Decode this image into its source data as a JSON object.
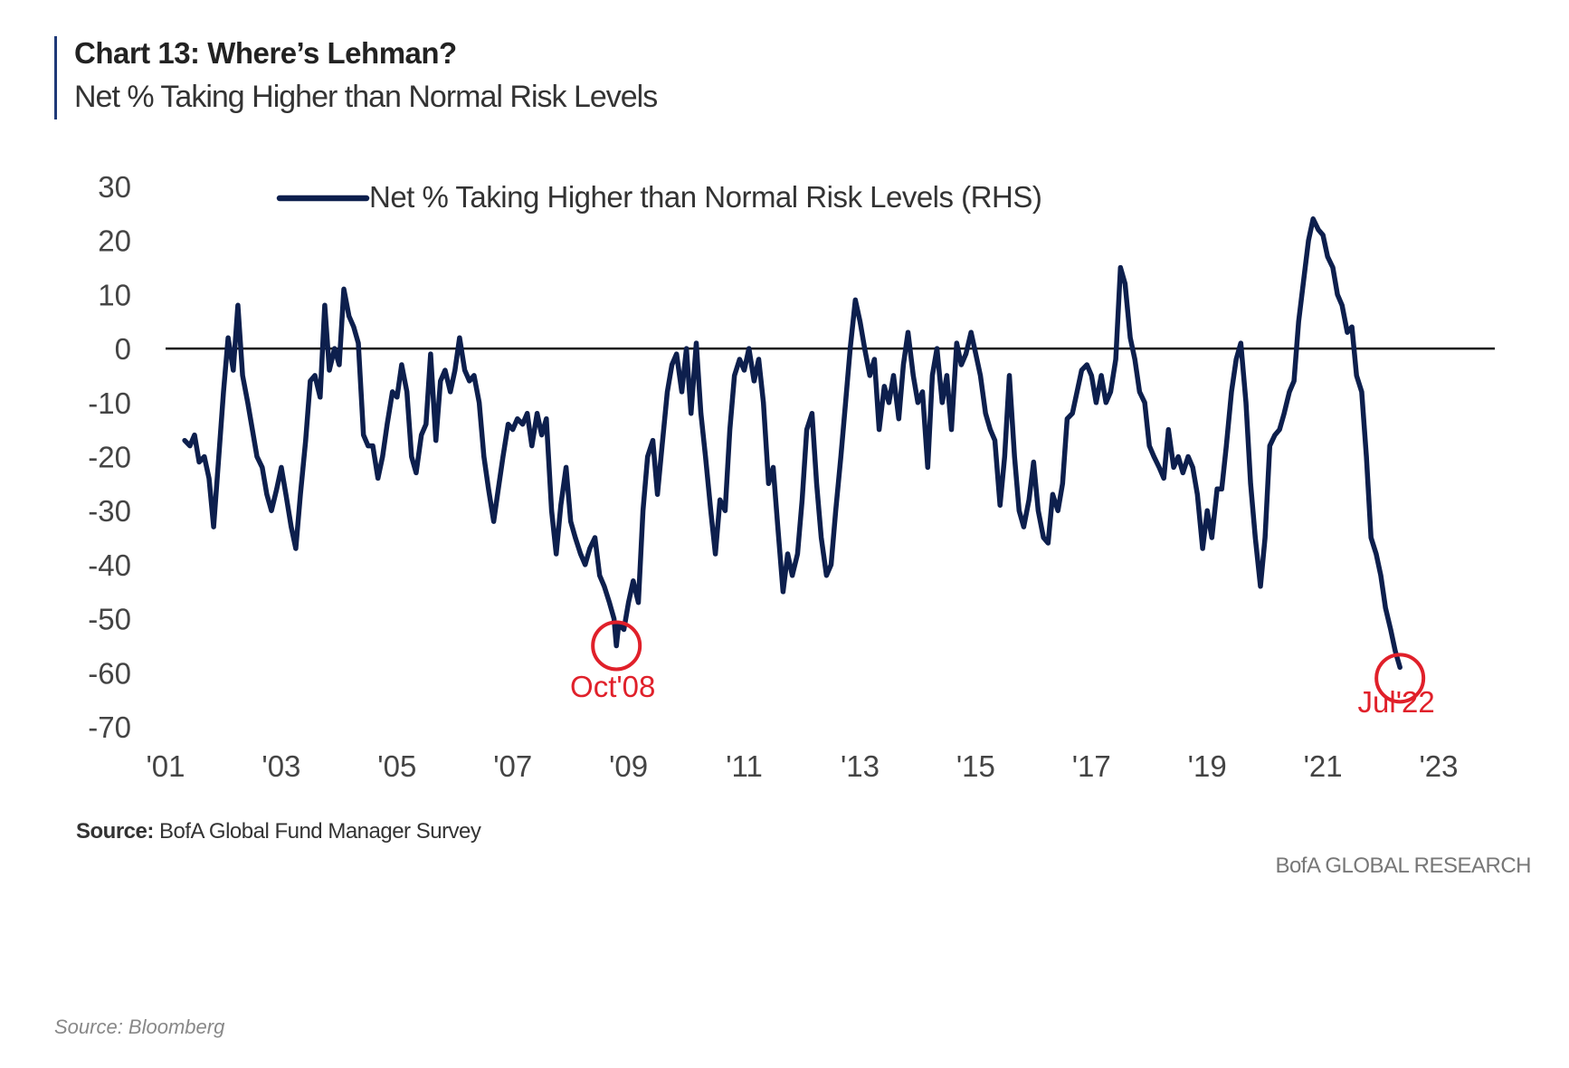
{
  "header": {
    "title": "Chart 13: Where’s Lehman?",
    "subtitle": "Net % Taking Higher than Normal Risk Levels"
  },
  "source": {
    "label": "Source:",
    "text": "BofA Global Fund Manager Survey"
  },
  "brand": "BofA GLOBAL RESEARCH",
  "footer_source": "Source: Bloomberg",
  "chart_data": {
    "type": "line",
    "title": "Chart 13: Where’s Lehman?",
    "subtitle": "Net % Taking Higher than Normal Risk Levels",
    "xlabel": "",
    "ylabel": "",
    "ylim": [
      -70,
      30
    ],
    "xlim": [
      2001.0,
      2023.0
    ],
    "y_ticks": [
      30,
      20,
      10,
      0,
      -10,
      -20,
      -30,
      -40,
      -50,
      -60,
      -70
    ],
    "x_ticks": [
      {
        "value": 2001,
        "label": "'01"
      },
      {
        "value": 2003,
        "label": "'03"
      },
      {
        "value": 2005,
        "label": "'05"
      },
      {
        "value": 2007,
        "label": "'07"
      },
      {
        "value": 2009,
        "label": "'09"
      },
      {
        "value": 2011,
        "label": "'11"
      },
      {
        "value": 2013,
        "label": "'13"
      },
      {
        "value": 2015,
        "label": "'15"
      },
      {
        "value": 2017,
        "label": "'17"
      },
      {
        "value": 2019,
        "label": "'19"
      },
      {
        "value": 2021,
        "label": "'21"
      },
      {
        "value": 2023,
        "label": "'23"
      }
    ],
    "grid": false,
    "zero_line": true,
    "legend": {
      "position": "top-left"
    },
    "series_color": "#0d1f4d",
    "annotation_color": "#e0202a",
    "series": [
      {
        "name": "Net % Taking Higher than Normal Risk Levels (RHS)",
        "points": [
          [
            2001.33,
            -17
          ],
          [
            2001.42,
            -18
          ],
          [
            2001.5,
            -16
          ],
          [
            2001.58,
            -21
          ],
          [
            2001.67,
            -20
          ],
          [
            2001.75,
            -24
          ],
          [
            2001.83,
            -33
          ],
          [
            2001.92,
            -20
          ],
          [
            2002.0,
            -8
          ],
          [
            2002.08,
            2
          ],
          [
            2002.17,
            -4
          ],
          [
            2002.25,
            8
          ],
          [
            2002.33,
            -5
          ],
          [
            2002.42,
            -10
          ],
          [
            2002.5,
            -15
          ],
          [
            2002.58,
            -20
          ],
          [
            2002.67,
            -22
          ],
          [
            2002.75,
            -27
          ],
          [
            2002.83,
            -30
          ],
          [
            2002.92,
            -26
          ],
          [
            2003.0,
            -22
          ],
          [
            2003.08,
            -27
          ],
          [
            2003.17,
            -33
          ],
          [
            2003.25,
            -37
          ],
          [
            2003.33,
            -27
          ],
          [
            2003.42,
            -17
          ],
          [
            2003.5,
            -6
          ],
          [
            2003.58,
            -5
          ],
          [
            2003.67,
            -9
          ],
          [
            2003.75,
            8
          ],
          [
            2003.83,
            -4
          ],
          [
            2003.92,
            0
          ],
          [
            2004.0,
            -3
          ],
          [
            2004.08,
            11
          ],
          [
            2004.17,
            6
          ],
          [
            2004.25,
            4
          ],
          [
            2004.33,
            1
          ],
          [
            2004.42,
            -16
          ],
          [
            2004.5,
            -18
          ],
          [
            2004.58,
            -18
          ],
          [
            2004.67,
            -24
          ],
          [
            2004.75,
            -20
          ],
          [
            2004.83,
            -14
          ],
          [
            2004.92,
            -8
          ],
          [
            2005.0,
            -9
          ],
          [
            2005.08,
            -3
          ],
          [
            2005.17,
            -8
          ],
          [
            2005.25,
            -20
          ],
          [
            2005.33,
            -23
          ],
          [
            2005.42,
            -16
          ],
          [
            2005.5,
            -14
          ],
          [
            2005.58,
            -1
          ],
          [
            2005.67,
            -17
          ],
          [
            2005.75,
            -6
          ],
          [
            2005.83,
            -4
          ],
          [
            2005.92,
            -8
          ],
          [
            2006.0,
            -4
          ],
          [
            2006.08,
            2
          ],
          [
            2006.17,
            -4
          ],
          [
            2006.25,
            -6
          ],
          [
            2006.33,
            -5
          ],
          [
            2006.42,
            -10
          ],
          [
            2006.5,
            -20
          ],
          [
            2006.58,
            -26
          ],
          [
            2006.67,
            -32
          ],
          [
            2006.75,
            -26
          ],
          [
            2006.83,
            -20
          ],
          [
            2006.92,
            -14
          ],
          [
            2007.0,
            -15
          ],
          [
            2007.08,
            -13
          ],
          [
            2007.17,
            -14
          ],
          [
            2007.25,
            -12
          ],
          [
            2007.33,
            -18
          ],
          [
            2007.42,
            -12
          ],
          [
            2007.5,
            -16
          ],
          [
            2007.58,
            -13
          ],
          [
            2007.67,
            -30
          ],
          [
            2007.75,
            -38
          ],
          [
            2007.83,
            -29
          ],
          [
            2007.92,
            -22
          ],
          [
            2008.0,
            -32
          ],
          [
            2008.08,
            -35
          ],
          [
            2008.17,
            -38
          ],
          [
            2008.25,
            -40
          ],
          [
            2008.33,
            -37
          ],
          [
            2008.42,
            -35
          ],
          [
            2008.5,
            -42
          ],
          [
            2008.58,
            -44
          ],
          [
            2008.67,
            -47
          ],
          [
            2008.75,
            -50
          ],
          [
            2008.79,
            -55
          ],
          [
            2008.83,
            -51
          ],
          [
            2008.92,
            -52
          ],
          [
            2009.0,
            -47
          ],
          [
            2009.08,
            -43
          ],
          [
            2009.17,
            -47
          ],
          [
            2009.25,
            -30
          ],
          [
            2009.33,
            -20
          ],
          [
            2009.42,
            -17
          ],
          [
            2009.5,
            -27
          ],
          [
            2009.58,
            -18
          ],
          [
            2009.67,
            -8
          ],
          [
            2009.75,
            -3
          ],
          [
            2009.83,
            -1
          ],
          [
            2009.92,
            -8
          ],
          [
            2010.0,
            0
          ],
          [
            2010.08,
            -12
          ],
          [
            2010.17,
            1
          ],
          [
            2010.25,
            -12
          ],
          [
            2010.33,
            -20
          ],
          [
            2010.42,
            -30
          ],
          [
            2010.5,
            -38
          ],
          [
            2010.58,
            -28
          ],
          [
            2010.67,
            -30
          ],
          [
            2010.75,
            -15
          ],
          [
            2010.83,
            -5
          ],
          [
            2010.92,
            -2
          ],
          [
            2011.0,
            -4
          ],
          [
            2011.08,
            0
          ],
          [
            2011.17,
            -6
          ],
          [
            2011.25,
            -2
          ],
          [
            2011.33,
            -10
          ],
          [
            2011.42,
            -25
          ],
          [
            2011.5,
            -22
          ],
          [
            2011.58,
            -33
          ],
          [
            2011.67,
            -45
          ],
          [
            2011.75,
            -38
          ],
          [
            2011.83,
            -42
          ],
          [
            2011.92,
            -38
          ],
          [
            2012.0,
            -28
          ],
          [
            2012.08,
            -15
          ],
          [
            2012.17,
            -12
          ],
          [
            2012.25,
            -25
          ],
          [
            2012.33,
            -35
          ],
          [
            2012.42,
            -42
          ],
          [
            2012.5,
            -40
          ],
          [
            2012.58,
            -30
          ],
          [
            2012.67,
            -20
          ],
          [
            2012.75,
            -10
          ],
          [
            2012.83,
            0
          ],
          [
            2012.92,
            9
          ],
          [
            2013.0,
            5
          ],
          [
            2013.08,
            0
          ],
          [
            2013.17,
            -5
          ],
          [
            2013.25,
            -2
          ],
          [
            2013.33,
            -15
          ],
          [
            2013.42,
            -7
          ],
          [
            2013.5,
            -10
          ],
          [
            2013.58,
            -5
          ],
          [
            2013.67,
            -13
          ],
          [
            2013.75,
            -3
          ],
          [
            2013.83,
            3
          ],
          [
            2013.92,
            -5
          ],
          [
            2014.0,
            -10
          ],
          [
            2014.08,
            -8
          ],
          [
            2014.17,
            -22
          ],
          [
            2014.25,
            -5
          ],
          [
            2014.33,
            0
          ],
          [
            2014.42,
            -10
          ],
          [
            2014.5,
            -5
          ],
          [
            2014.58,
            -15
          ],
          [
            2014.67,
            1
          ],
          [
            2014.75,
            -3
          ],
          [
            2014.83,
            -1
          ],
          [
            2014.92,
            3
          ],
          [
            2015.0,
            -1
          ],
          [
            2015.08,
            -5
          ],
          [
            2015.17,
            -12
          ],
          [
            2015.25,
            -15
          ],
          [
            2015.33,
            -17
          ],
          [
            2015.42,
            -29
          ],
          [
            2015.5,
            -20
          ],
          [
            2015.58,
            -5
          ],
          [
            2015.67,
            -20
          ],
          [
            2015.75,
            -30
          ],
          [
            2015.83,
            -33
          ],
          [
            2015.92,
            -28
          ],
          [
            2016.0,
            -21
          ],
          [
            2016.08,
            -30
          ],
          [
            2016.17,
            -35
          ],
          [
            2016.25,
            -36
          ],
          [
            2016.33,
            -27
          ],
          [
            2016.42,
            -30
          ],
          [
            2016.5,
            -25
          ],
          [
            2016.58,
            -13
          ],
          [
            2016.67,
            -12
          ],
          [
            2016.75,
            -8
          ],
          [
            2016.83,
            -4
          ],
          [
            2016.92,
            -3
          ],
          [
            2017.0,
            -5
          ],
          [
            2017.08,
            -10
          ],
          [
            2017.17,
            -5
          ],
          [
            2017.25,
            -10
          ],
          [
            2017.33,
            -8
          ],
          [
            2017.42,
            -2
          ],
          [
            2017.5,
            15
          ],
          [
            2017.58,
            12
          ],
          [
            2017.67,
            2
          ],
          [
            2017.75,
            -2
          ],
          [
            2017.83,
            -8
          ],
          [
            2017.92,
            -10
          ],
          [
            2018.0,
            -18
          ],
          [
            2018.08,
            -20
          ],
          [
            2018.17,
            -22
          ],
          [
            2018.25,
            -24
          ],
          [
            2018.33,
            -15
          ],
          [
            2018.42,
            -22
          ],
          [
            2018.5,
            -20
          ],
          [
            2018.58,
            -23
          ],
          [
            2018.67,
            -20
          ],
          [
            2018.75,
            -22
          ],
          [
            2018.83,
            -27
          ],
          [
            2018.92,
            -37
          ],
          [
            2019.0,
            -30
          ],
          [
            2019.08,
            -35
          ],
          [
            2019.17,
            -26
          ],
          [
            2019.25,
            -26
          ],
          [
            2019.33,
            -18
          ],
          [
            2019.42,
            -8
          ],
          [
            2019.5,
            -2
          ],
          [
            2019.58,
            1
          ],
          [
            2019.67,
            -10
          ],
          [
            2019.75,
            -25
          ],
          [
            2019.83,
            -35
          ],
          [
            2019.92,
            -44
          ],
          [
            2020.0,
            -35
          ],
          [
            2020.08,
            -18
          ],
          [
            2020.17,
            -16
          ],
          [
            2020.25,
            -15
          ],
          [
            2020.33,
            -12
          ],
          [
            2020.42,
            -8
          ],
          [
            2020.5,
            -6
          ],
          [
            2020.58,
            5
          ],
          [
            2020.67,
            13
          ],
          [
            2020.75,
            20
          ],
          [
            2020.83,
            24
          ],
          [
            2020.92,
            22
          ],
          [
            2021.0,
            21
          ],
          [
            2021.08,
            17
          ],
          [
            2021.17,
            15
          ],
          [
            2021.25,
            10
          ],
          [
            2021.33,
            8
          ],
          [
            2021.42,
            3
          ],
          [
            2021.5,
            4
          ],
          [
            2021.58,
            -5
          ],
          [
            2021.67,
            -8
          ],
          [
            2021.75,
            -20
          ],
          [
            2021.83,
            -35
          ],
          [
            2021.92,
            -38
          ],
          [
            2022.0,
            -42
          ],
          [
            2022.08,
            -48
          ],
          [
            2022.17,
            -52
          ],
          [
            2022.25,
            -56
          ],
          [
            2022.33,
            -59
          ]
        ]
      }
    ],
    "annotations": [
      {
        "label": "Oct'08",
        "x": 2008.79,
        "y": -55
      },
      {
        "label": "Jul'22",
        "x": 2022.33,
        "y": -59
      }
    ]
  }
}
